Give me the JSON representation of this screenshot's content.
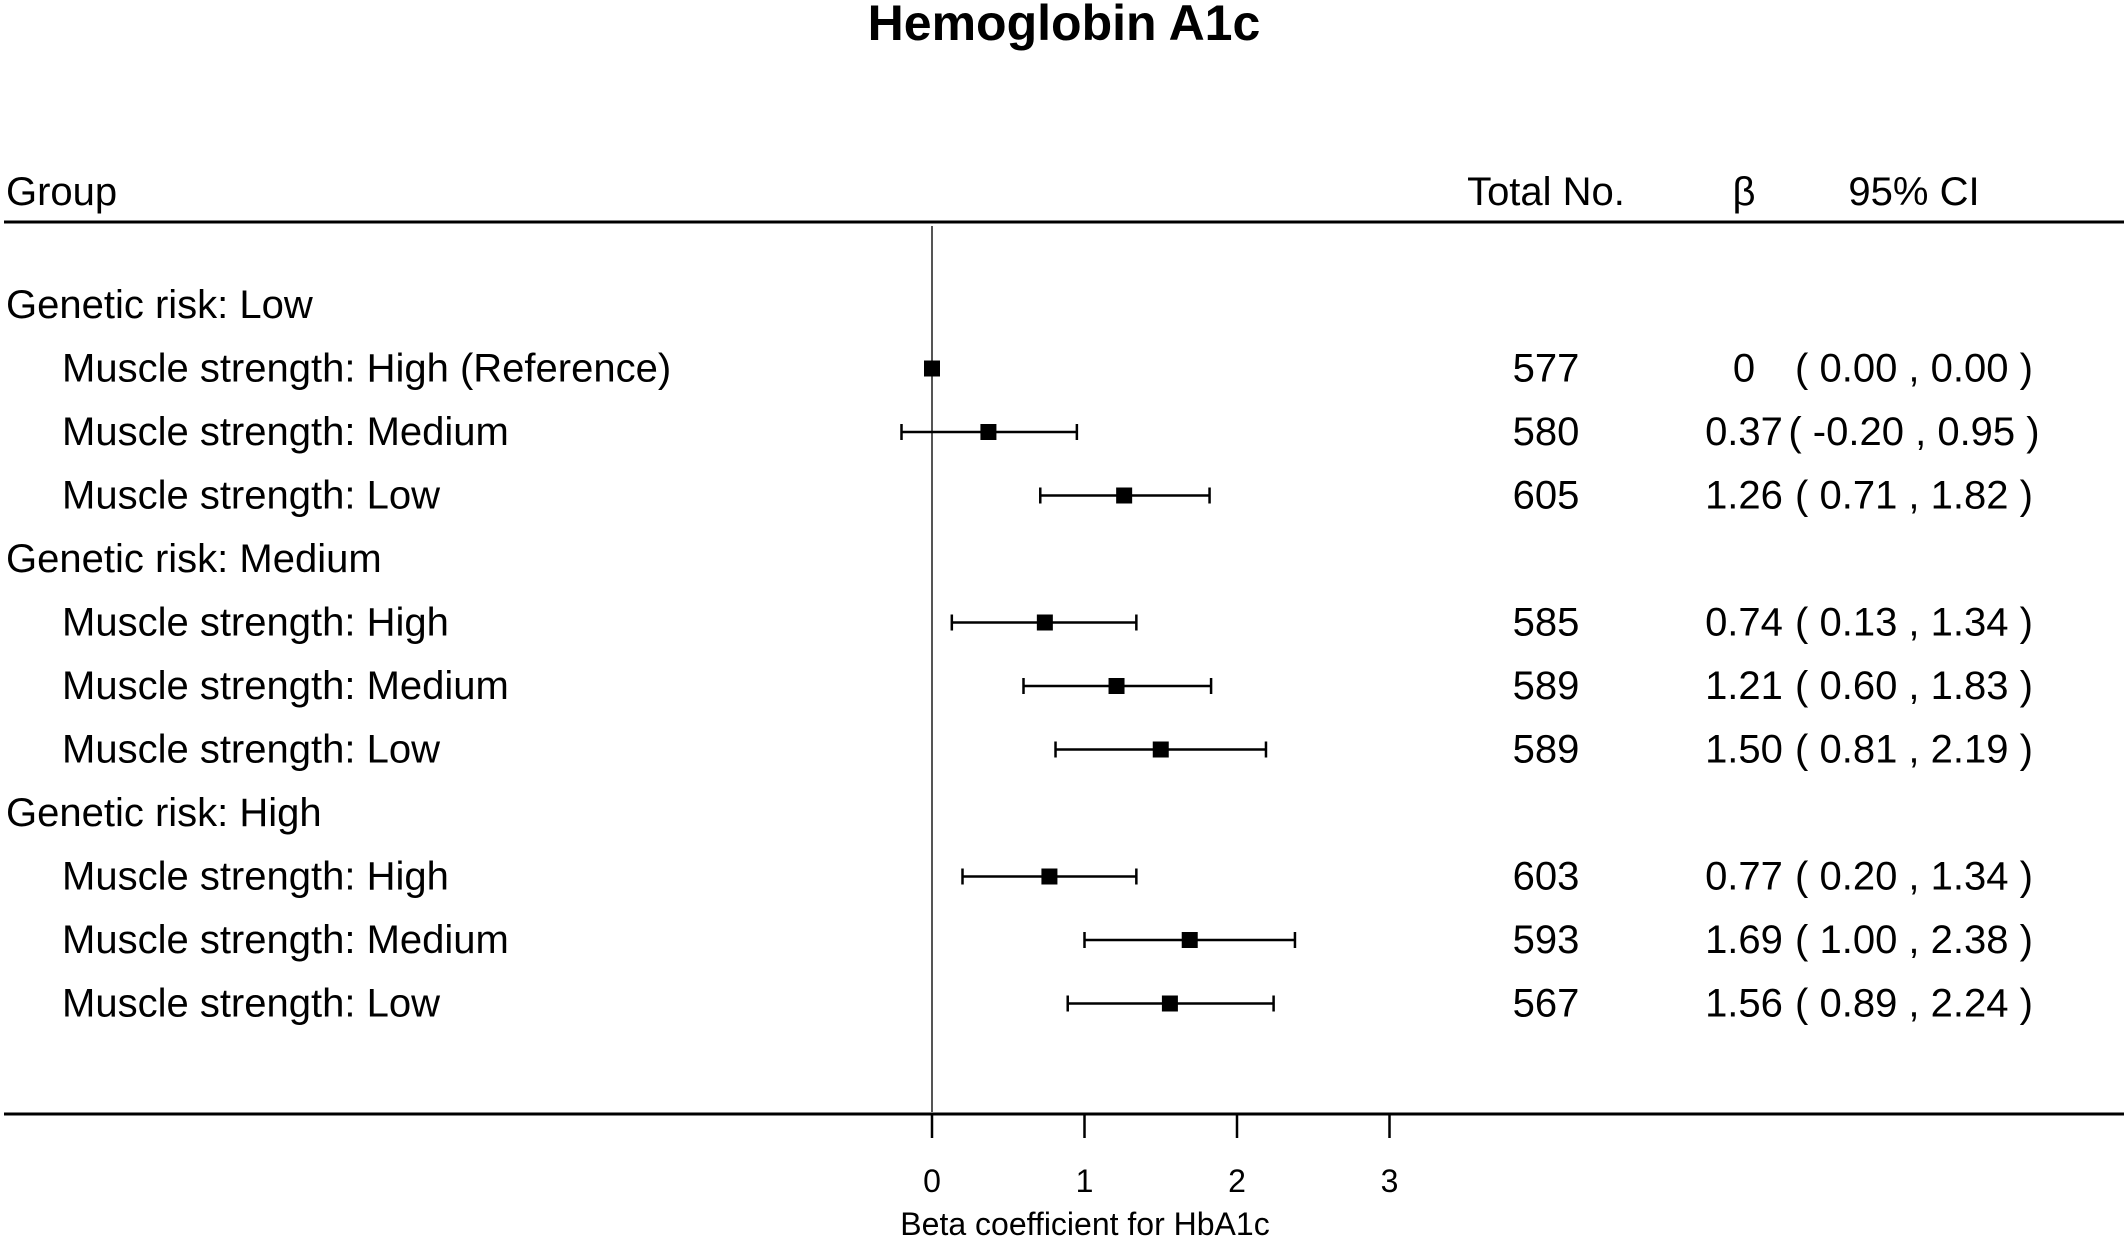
{
  "chart_data": {
    "type": "forest",
    "title": "Hemoglobin A1c",
    "xlabel": "Beta coefficient for HbA1c",
    "xlim": [
      0,
      3
    ],
    "xticks": [
      "0",
      "1",
      "2",
      "3"
    ],
    "columns": {
      "group": "Group",
      "total": "Total No.",
      "beta": "β",
      "ci": "95% CI"
    },
    "rows": [
      {
        "kind": "group",
        "label": "Genetic risk: Low"
      },
      {
        "kind": "item",
        "label": "Muscle strength: High (Reference)",
        "n": "577",
        "beta_text": "0",
        "ci_text": "( 0.00 , 0.00 )",
        "beta": 0.0,
        "lo": 0.0,
        "hi": 0.0
      },
      {
        "kind": "item",
        "label": "Muscle strength: Medium",
        "n": "580",
        "beta_text": "0.37",
        "ci_text": "( -0.20 , 0.95 )",
        "beta": 0.37,
        "lo": -0.2,
        "hi": 0.95
      },
      {
        "kind": "item",
        "label": "Muscle strength: Low",
        "n": "605",
        "beta_text": "1.26",
        "ci_text": "( 0.71 , 1.82 )",
        "beta": 1.26,
        "lo": 0.71,
        "hi": 1.82
      },
      {
        "kind": "group",
        "label": "Genetic risk: Medium"
      },
      {
        "kind": "item",
        "label": "Muscle strength: High",
        "n": "585",
        "beta_text": "0.74",
        "ci_text": "( 0.13 , 1.34 )",
        "beta": 0.74,
        "lo": 0.13,
        "hi": 1.34
      },
      {
        "kind": "item",
        "label": "Muscle strength: Medium",
        "n": "589",
        "beta_text": "1.21",
        "ci_text": "( 0.60 , 1.83 )",
        "beta": 1.21,
        "lo": 0.6,
        "hi": 1.83
      },
      {
        "kind": "item",
        "label": "Muscle strength: Low",
        "n": "589",
        "beta_text": "1.50",
        "ci_text": "( 0.81 , 2.19 )",
        "beta": 1.5,
        "lo": 0.81,
        "hi": 2.19
      },
      {
        "kind": "group",
        "label": "Genetic risk: High"
      },
      {
        "kind": "item",
        "label": "Muscle strength: High",
        "n": "603",
        "beta_text": "0.77",
        "ci_text": "( 0.20 , 1.34 )",
        "beta": 0.77,
        "lo": 0.2,
        "hi": 1.34
      },
      {
        "kind": "item",
        "label": "Muscle strength: Medium",
        "n": "593",
        "beta_text": "1.69",
        "ci_text": "( 1.00 , 2.38 )",
        "beta": 1.69,
        "lo": 1.0,
        "hi": 2.38
      },
      {
        "kind": "item",
        "label": "Muscle strength: Low",
        "n": "567",
        "beta_text": "1.56",
        "ci_text": "( 0.89 , 2.24 )",
        "beta": 1.56,
        "lo": 0.89,
        "hi": 2.24
      }
    ]
  }
}
